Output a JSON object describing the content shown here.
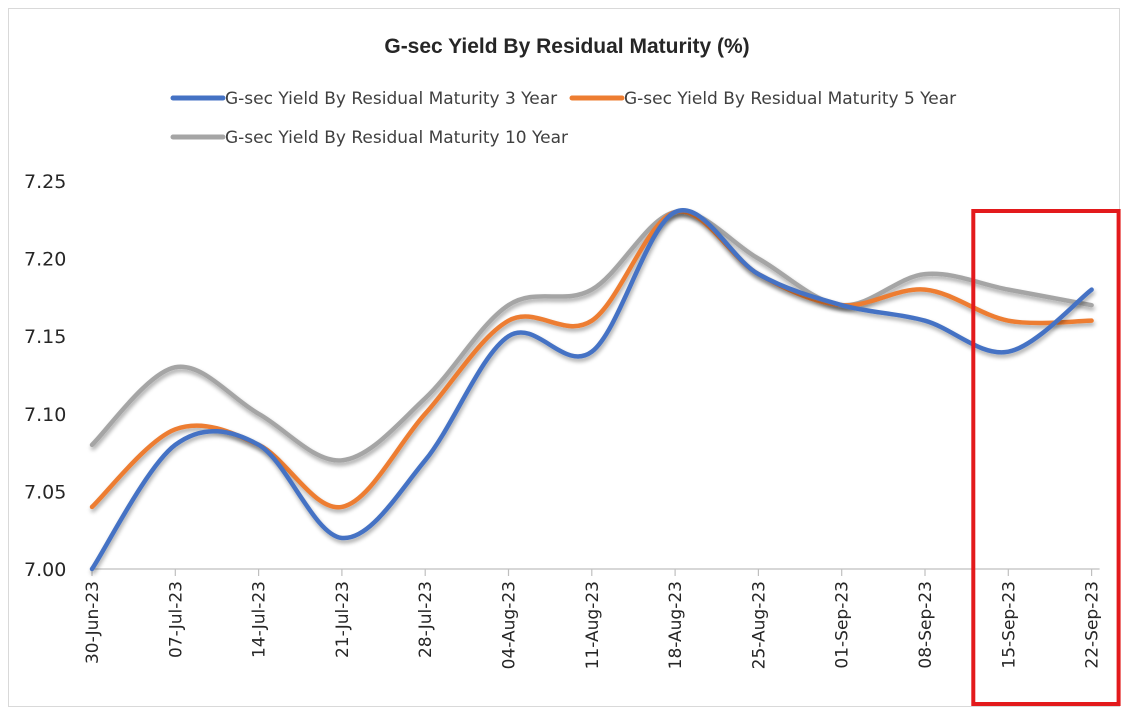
{
  "chart_data": {
    "type": "line",
    "title": "G-sec Yield By Residual Maturity (%)",
    "xlabel": "",
    "ylabel": "",
    "ylim": [
      7.0,
      7.25
    ],
    "yticks": [
      "7.00",
      "7.05",
      "7.10",
      "7.15",
      "7.20",
      "7.25"
    ],
    "categories": [
      "30-Jun-23",
      "07-Jul-23",
      "14-Jul-23",
      "21-Jul-23",
      "28-Jul-23",
      "04-Aug-23",
      "11-Aug-23",
      "18-Aug-23",
      "25-Aug-23",
      "01-Sep-23",
      "08-Sep-23",
      "15-Sep-23",
      "22-Sep-23"
    ],
    "series": [
      {
        "name": "G-sec Yield By Residual Maturity 3 Year",
        "color": "#4472c4",
        "values": [
          7.0,
          7.08,
          7.08,
          7.02,
          7.07,
          7.15,
          7.14,
          7.23,
          7.19,
          7.17,
          7.16,
          7.14,
          7.18
        ]
      },
      {
        "name": "G-sec Yield By Residual Maturity 5 Year",
        "color": "#ed7d31",
        "values": [
          7.04,
          7.09,
          7.08,
          7.04,
          7.1,
          7.16,
          7.16,
          7.23,
          7.19,
          7.17,
          7.18,
          7.16,
          7.16
        ]
      },
      {
        "name": "G-sec Yield By Residual Maturity 10 Year",
        "color": "#a5a5a5",
        "values": [
          7.08,
          7.13,
          7.1,
          7.07,
          7.11,
          7.17,
          7.18,
          7.23,
          7.2,
          7.17,
          7.19,
          7.18,
          7.17
        ]
      }
    ],
    "grid": false,
    "legend": "top",
    "highlight": {
      "categories": [
        "15-Sep-23",
        "22-Sep-23"
      ],
      "color": "#e31a1c"
    }
  }
}
